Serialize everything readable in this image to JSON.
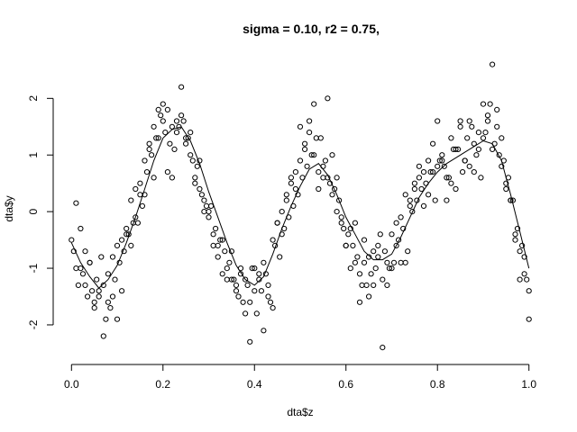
{
  "chart_data": {
    "type": "scatter",
    "title": "sigma = 0.10, r2 = 0.75,",
    "xlabel": "dta$z",
    "ylabel": "dta$y",
    "xlim": [
      -0.04,
      1.04
    ],
    "ylim": [
      -2.7,
      2.8
    ],
    "x_ticks": [
      0.0,
      0.2,
      0.4,
      0.6,
      0.8,
      1.0
    ],
    "x_tick_labels": [
      "0.0",
      "0.2",
      "0.4",
      "0.6",
      "0.8",
      "1.0"
    ],
    "y_ticks": [
      -2,
      -1,
      0,
      1,
      2
    ],
    "y_tick_labels": [
      "-2",
      "-1",
      "0",
      "1",
      "2"
    ],
    "grid": false,
    "legend": "none",
    "colors": {
      "points": "#000000",
      "fit_line": "#000000"
    },
    "series": [
      {
        "style": "open-circle points",
        "x": [
          0.0,
          0.01,
          0.02,
          0.03,
          0.04,
          0.05,
          0.06,
          0.07,
          0.08,
          0.09,
          0.1,
          0.11,
          0.12,
          0.13,
          0.14,
          0.15,
          0.16,
          0.17,
          0.18,
          0.19,
          0.2,
          0.21,
          0.22,
          0.23,
          0.24,
          0.25,
          0.26,
          0.27,
          0.28,
          0.29,
          0.3,
          0.31,
          0.32,
          0.33,
          0.34,
          0.35,
          0.36,
          0.37,
          0.38,
          0.39,
          0.4,
          0.41,
          0.42,
          0.43,
          0.44,
          0.45,
          0.46,
          0.47,
          0.48,
          0.49,
          0.5,
          0.51,
          0.52,
          0.53,
          0.54,
          0.55,
          0.56,
          0.57,
          0.58,
          0.59,
          0.6,
          0.61,
          0.62,
          0.63,
          0.64,
          0.65,
          0.66,
          0.67,
          0.68,
          0.69,
          0.7,
          0.71,
          0.72,
          0.73,
          0.74,
          0.75,
          0.76,
          0.77,
          0.78,
          0.79,
          0.8,
          0.81,
          0.82,
          0.83,
          0.84,
          0.85,
          0.86,
          0.87,
          0.88,
          0.89,
          0.9,
          0.91,
          0.92,
          0.93,
          0.94,
          0.95,
          0.96,
          0.97,
          0.98,
          0.99,
          1.0,
          0.005,
          0.025,
          0.045,
          0.065,
          0.085,
          0.105,
          0.125,
          0.145,
          0.165,
          0.185,
          0.205,
          0.225,
          0.245,
          0.265,
          0.285,
          0.305,
          0.325,
          0.345,
          0.365,
          0.385,
          0.405,
          0.425,
          0.445,
          0.465,
          0.485,
          0.505,
          0.525,
          0.545,
          0.565,
          0.585,
          0.605,
          0.625,
          0.645,
          0.665,
          0.685,
          0.705,
          0.725,
          0.745,
          0.765,
          0.785,
          0.805,
          0.825,
          0.845,
          0.865,
          0.885,
          0.905,
          0.925,
          0.945,
          0.965,
          0.985,
          0.015,
          0.035,
          0.055,
          0.075,
          0.095,
          0.115,
          0.135,
          0.155,
          0.175,
          0.195,
          0.215,
          0.235,
          0.255,
          0.275,
          0.295,
          0.315,
          0.335,
          0.355,
          0.375,
          0.395,
          0.415,
          0.435,
          0.455,
          0.475,
          0.495,
          0.515,
          0.535,
          0.555,
          0.575,
          0.595,
          0.615,
          0.635,
          0.655,
          0.675,
          0.695,
          0.715,
          0.735,
          0.755,
          0.775,
          0.795,
          0.815,
          0.835,
          0.855,
          0.875,
          0.895,
          0.915,
          0.935,
          0.955,
          0.975,
          0.995,
          0.01,
          0.03,
          0.05,
          0.07,
          0.09,
          0.11,
          0.13,
          0.15,
          0.17,
          0.19,
          0.21,
          0.23,
          0.25,
          0.27,
          0.29,
          0.31,
          0.33,
          0.35,
          0.37,
          0.39,
          0.41,
          0.43,
          0.45,
          0.47,
          0.49,
          0.51,
          0.53,
          0.55,
          0.57,
          0.59,
          0.61,
          0.63,
          0.65,
          0.67,
          0.69,
          0.71,
          0.73,
          0.75,
          0.77,
          0.79,
          0.81,
          0.83,
          0.85,
          0.87,
          0.89,
          0.91,
          0.93,
          0.95,
          0.97,
          0.99,
          0.02,
          0.06,
          0.1,
          0.14,
          0.18,
          0.22,
          0.26,
          0.3,
          0.34,
          0.38,
          0.42,
          0.46,
          0.5,
          0.54,
          0.58,
          0.62,
          0.66,
          0.7,
          0.74,
          0.78,
          0.82,
          0.86,
          0.9,
          0.94,
          0.98,
          0.04,
          0.08,
          0.12,
          0.16,
          0.2,
          0.24,
          0.28,
          0.32,
          0.36,
          0.4,
          0.44,
          0.48,
          0.52,
          0.56,
          0.6,
          0.64,
          0.68,
          0.72,
          0.76,
          0.8,
          0.84,
          0.88,
          0.92,
          0.96,
          1.0
        ],
        "y": [
          -0.5,
          0.15,
          -1.0,
          -1.3,
          -0.9,
          -1.6,
          -1.5,
          -2.2,
          -1.1,
          -1.5,
          -0.6,
          -0.5,
          -0.3,
          0.2,
          0.4,
          0.5,
          0.9,
          1.2,
          1.5,
          1.3,
          1.6,
          1.8,
          1.5,
          1.4,
          2.2,
          1.3,
          1.0,
          0.6,
          0.4,
          0.2,
          -0.1,
          -0.4,
          -0.8,
          -0.5,
          -1.0,
          -1.2,
          -1.4,
          -1.0,
          -1.8,
          -2.3,
          -1.4,
          -1.1,
          -0.9,
          -1.3,
          -0.5,
          -0.2,
          0.0,
          0.3,
          0.5,
          0.7,
          0.9,
          1.2,
          1.6,
          1.0,
          0.7,
          0.8,
          0.6,
          0.3,
          0.0,
          -0.2,
          -0.6,
          -0.3,
          -0.9,
          -1.1,
          -0.5,
          -1.5,
          -0.7,
          -0.8,
          -1.2,
          -0.9,
          -0.4,
          -0.6,
          -0.1,
          0.3,
          0.2,
          0.5,
          0.6,
          0.1,
          0.9,
          0.7,
          0.8,
          1.0,
          0.6,
          1.3,
          1.1,
          1.5,
          0.9,
          1.6,
          1.2,
          1.4,
          1.3,
          1.7,
          1.1,
          1.5,
          0.8,
          0.4,
          0.2,
          -0.4,
          -0.7,
          -1.1,
          -1.9,
          -0.7,
          -1.1,
          -1.4,
          -0.8,
          -1.7,
          -0.9,
          -0.4,
          -0.2,
          0.7,
          1.3,
          1.4,
          1.1,
          1.6,
          0.9,
          0.3,
          0.1,
          -0.5,
          -0.9,
          -1.5,
          -1.3,
          -1.8,
          -1.1,
          -0.6,
          -0.3,
          0.1,
          0.6,
          1.0,
          1.3,
          0.5,
          0.2,
          -0.4,
          -0.8,
          -1.3,
          -1.0,
          -0.7,
          -0.9,
          -0.3,
          0.0,
          0.4,
          0.7,
          0.9,
          0.6,
          1.1,
          1.3,
          1.0,
          1.4,
          1.2,
          0.9,
          0.2,
          -0.6,
          -1.3,
          -1.5,
          -1.2,
          -1.9,
          -1.2,
          -0.7,
          -0.2,
          0.1,
          1.0,
          1.7,
          1.2,
          1.5,
          1.3,
          0.8,
          0.1,
          -0.3,
          -0.7,
          -1.2,
          -1.6,
          -1.0,
          -1.4,
          -1.6,
          -0.8,
          -0.1,
          0.3,
          0.8,
          1.3,
          0.9,
          0.4,
          -0.3,
          -0.6,
          -1.3,
          -1.1,
          -0.4,
          -1.0,
          -0.5,
          -0.7,
          0.2,
          0.5,
          0.2,
          0.8,
          1.1,
          0.7,
          1.5,
          0.6,
          1.9,
          1.0,
          0.6,
          -0.3,
          -1.2,
          -1.0,
          -0.7,
          -1.7,
          -1.3,
          -0.8,
          -1.4,
          -0.6,
          0.3,
          1.1,
          1.8,
          0.7,
          1.6,
          1.2,
          0.5,
          0.0,
          -0.6,
          -1.1,
          -0.7,
          -1.1,
          -1.6,
          -1.2,
          -1.5,
          -0.2,
          0.2,
          0.4,
          1.1,
          1.9,
          0.6,
          1.0,
          -0.1,
          -1.0,
          -1.6,
          -0.8,
          -0.6,
          -1.3,
          -0.2,
          -0.9,
          0.4,
          0.7,
          1.2,
          0.9,
          0.5,
          1.6,
          0.8,
          1.1,
          1.6,
          1.8,
          0.5,
          -0.5,
          -0.8,
          -0.3,
          -1.4,
          -1.9,
          -0.1,
          0.6,
          0.6,
          1.4,
          0.0,
          -1.2,
          -1.2,
          -2.1,
          -0.4,
          1.5,
          0.4,
          0.6,
          -0.2,
          -1.3,
          -1.0,
          0.1,
          0.3,
          0.2,
          0.9,
          1.9,
          1.3,
          -1.2,
          -0.9,
          -1.6,
          -0.4,
          0.3,
          1.9,
          1.7,
          0.9,
          -0.6,
          -1.3,
          -1.0,
          -1.7,
          0.6,
          1.4,
          2.0,
          -0.6,
          -0.9,
          -2.4,
          -0.9,
          0.8,
          1.6,
          0.4,
          0.7,
          2.6,
          0.2,
          -1.4
        ]
      },
      {
        "style": "line",
        "x": [
          0.0,
          0.02,
          0.04,
          0.06,
          0.08,
          0.1,
          0.12,
          0.14,
          0.16,
          0.18,
          0.2,
          0.22,
          0.24,
          0.26,
          0.28,
          0.3,
          0.32,
          0.34,
          0.36,
          0.38,
          0.4,
          0.42,
          0.44,
          0.46,
          0.48,
          0.5,
          0.52,
          0.54,
          0.56,
          0.58,
          0.6,
          0.62,
          0.64,
          0.66,
          0.68,
          0.7,
          0.72,
          0.74,
          0.76,
          0.78,
          0.8,
          0.82,
          0.84,
          0.86,
          0.88,
          0.9,
          0.92,
          0.94,
          0.96,
          0.98,
          1.0
        ],
        "y": [
          -0.55,
          -0.9,
          -1.15,
          -1.35,
          -1.2,
          -0.95,
          -0.55,
          -0.1,
          0.4,
          0.9,
          1.3,
          1.45,
          1.5,
          1.25,
          0.85,
          0.35,
          -0.1,
          -0.55,
          -0.95,
          -1.2,
          -1.3,
          -1.15,
          -0.75,
          -0.3,
          0.1,
          0.45,
          0.75,
          0.85,
          0.65,
          0.3,
          -0.1,
          -0.4,
          -0.7,
          -0.85,
          -0.85,
          -0.75,
          -0.45,
          -0.1,
          0.25,
          0.5,
          0.7,
          0.85,
          0.95,
          1.05,
          1.15,
          1.25,
          1.2,
          0.9,
          0.3,
          -0.35,
          -1.0
        ]
      }
    ]
  }
}
